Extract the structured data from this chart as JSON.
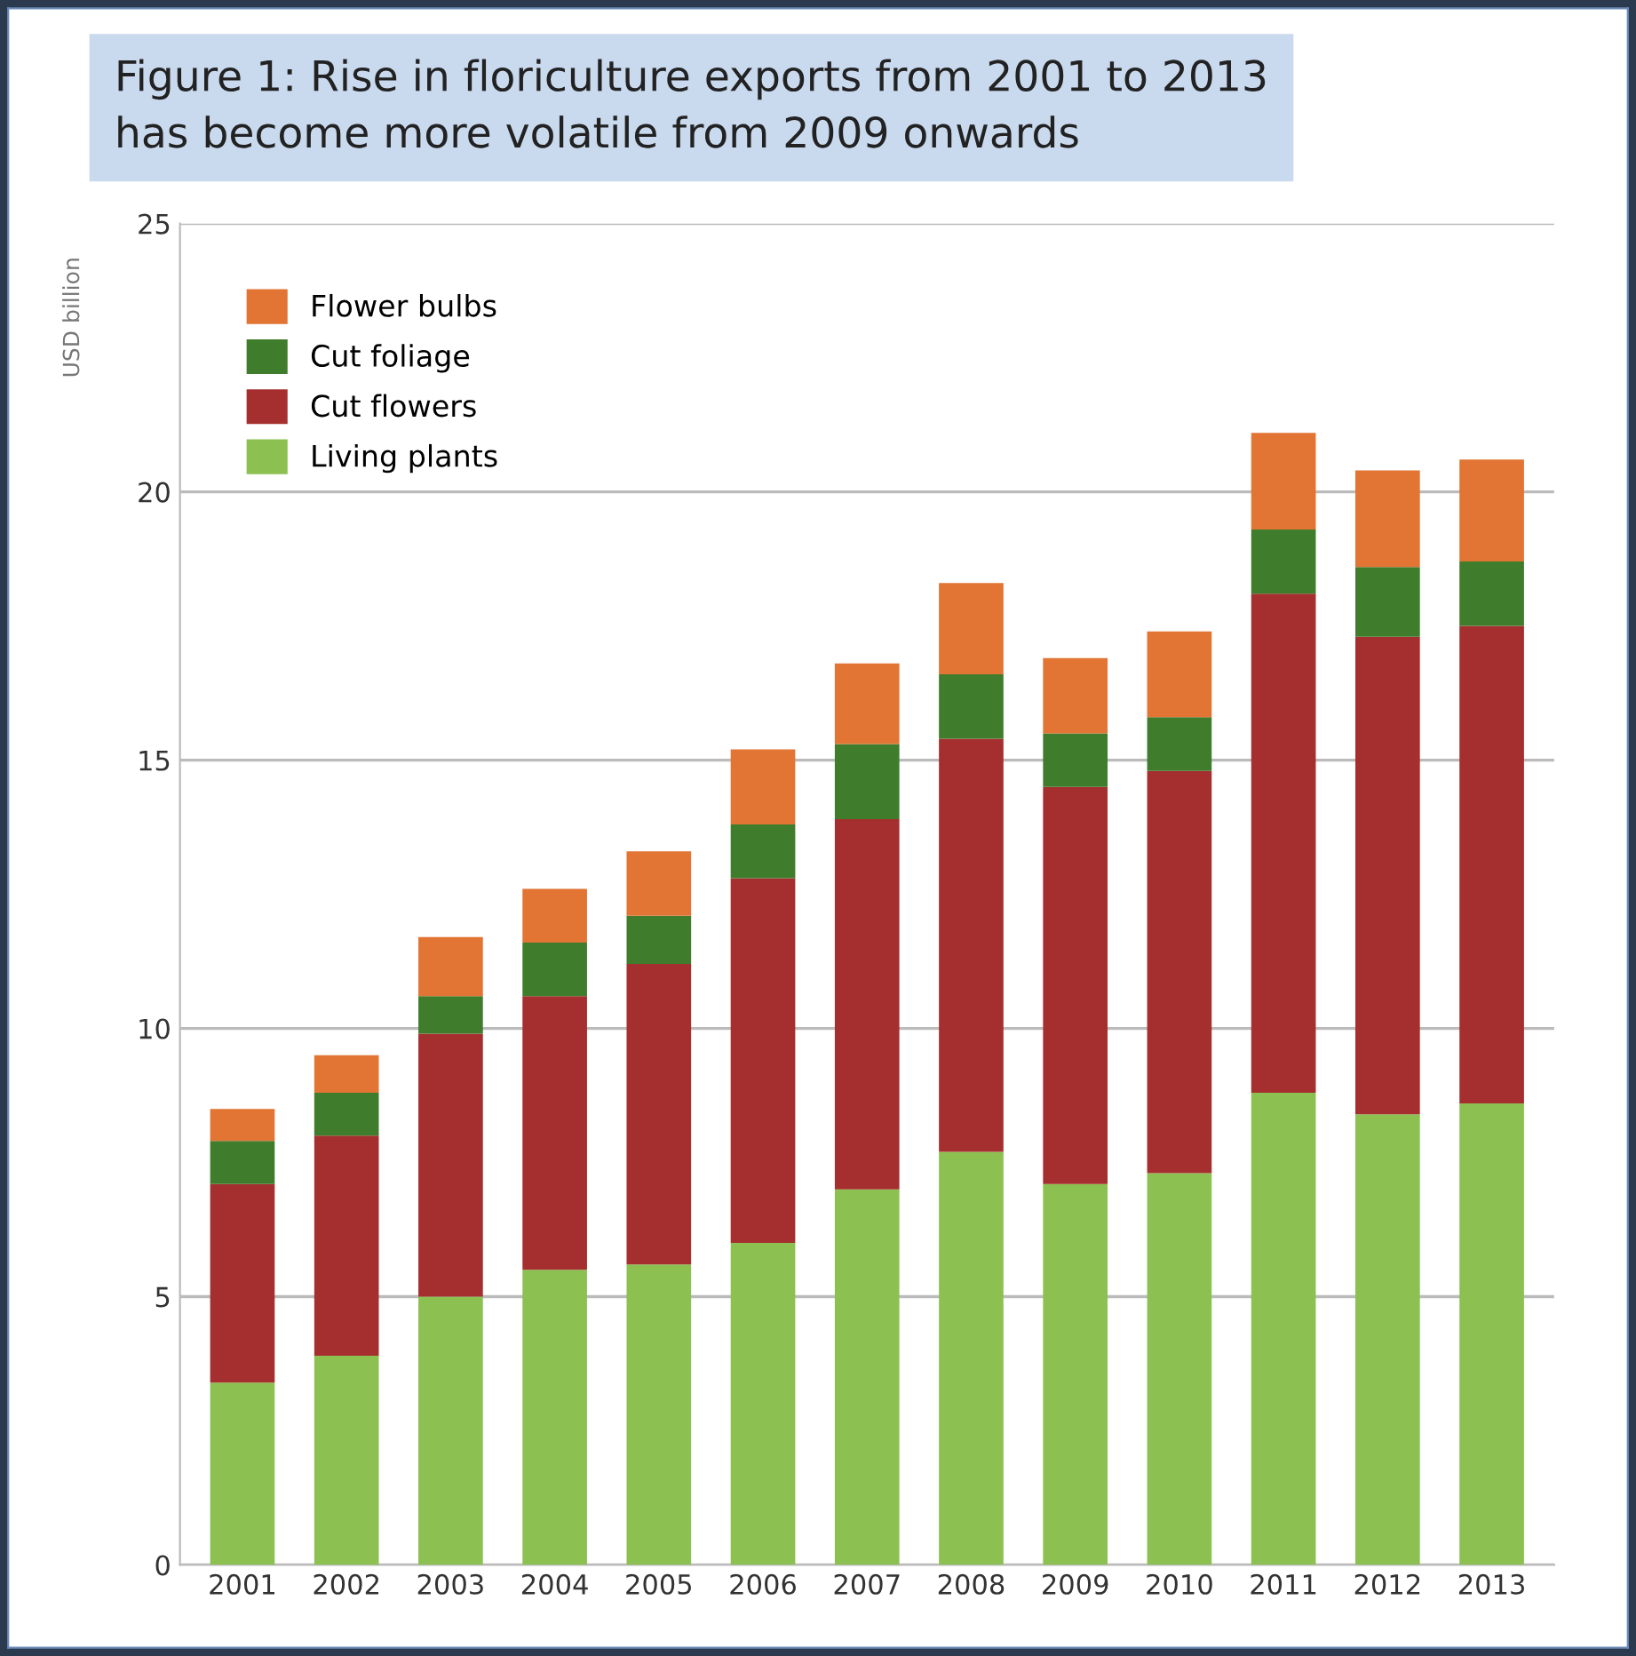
{
  "chart_data": {
    "type": "bar",
    "title": "Figure 1: Rise in floriculture exports from 2001 to 2013\nhas become more volatile from 2009 onwards",
    "ylabel": "USD billion",
    "stacked": true,
    "categories": [
      "2001",
      "2002",
      "2003",
      "2004",
      "2005",
      "2006",
      "2007",
      "2008",
      "2009",
      "2010",
      "2011",
      "2012",
      "2013"
    ],
    "series": [
      {
        "name": "Living plants",
        "color": "#8cc152",
        "values": [
          3.4,
          3.9,
          5.0,
          5.5,
          5.6,
          6.0,
          7.0,
          7.7,
          7.1,
          7.3,
          8.8,
          8.4,
          8.6
        ]
      },
      {
        "name": "Cut flowers",
        "color": "#a52f2e",
        "values": [
          3.7,
          4.1,
          4.9,
          5.1,
          5.6,
          6.8,
          6.9,
          7.7,
          7.4,
          7.5,
          9.3,
          8.9,
          8.9
        ]
      },
      {
        "name": "Cut foliage",
        "color": "#3f7d2c",
        "values": [
          0.8,
          0.8,
          0.7,
          1.0,
          0.9,
          1.0,
          1.4,
          1.2,
          1.0,
          1.0,
          1.2,
          1.3,
          1.2
        ]
      },
      {
        "name": "Flower bulbs",
        "color": "#e27434",
        "values": [
          0.6,
          0.7,
          1.1,
          1.0,
          1.2,
          1.4,
          1.5,
          1.7,
          1.4,
          1.6,
          1.8,
          1.8,
          1.9
        ]
      }
    ],
    "ylim": [
      0,
      25
    ],
    "yticks": [
      0,
      5,
      10,
      15,
      20,
      25
    ],
    "grid": "y",
    "legend": "top left"
  }
}
